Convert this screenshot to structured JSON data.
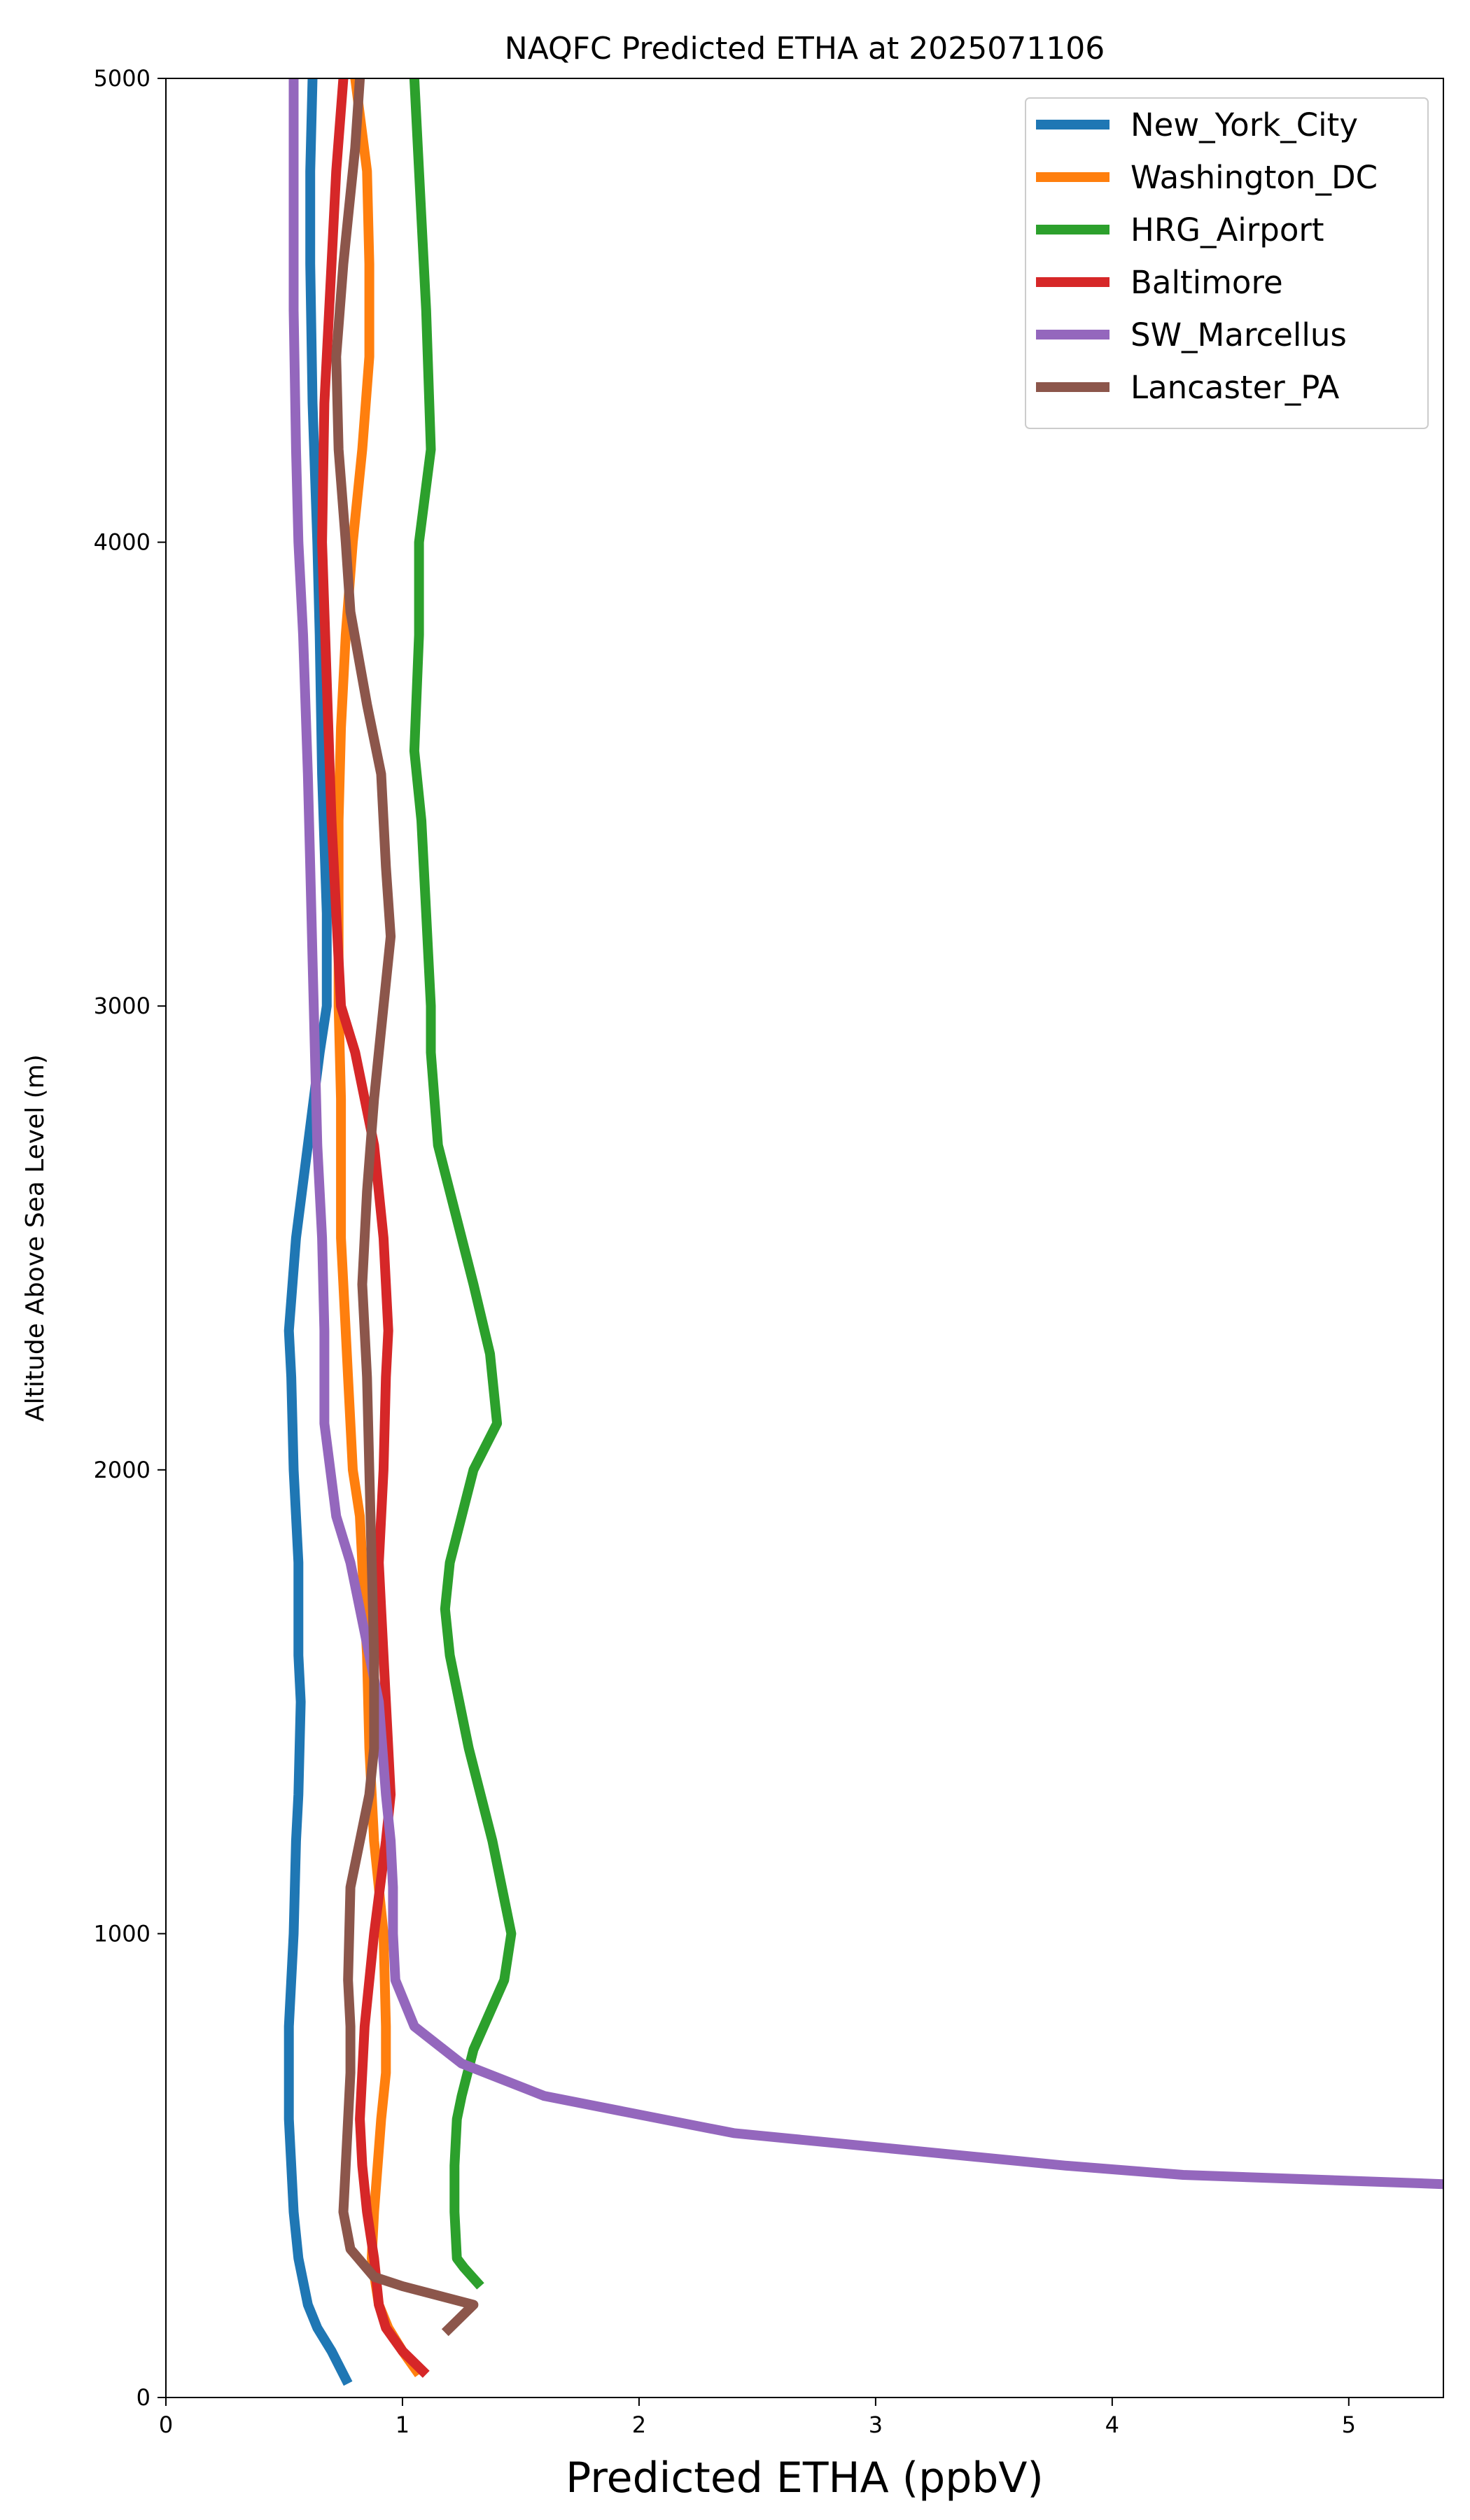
{
  "chart_data": {
    "type": "line",
    "title": "NAQFC Predicted ETHA at 2025071106",
    "xlabel": "Predicted ETHA (ppbV)",
    "ylabel": "Altitude Above Sea Level (m)",
    "xlim": [
      0,
      5.4
    ],
    "ylim": [
      0,
      5000
    ],
    "xticks": [
      0,
      1,
      2,
      3,
      4,
      5
    ],
    "yticks": [
      0,
      1000,
      2000,
      3000,
      4000,
      5000
    ],
    "grid": false,
    "legend_position": "top-right",
    "series": [
      {
        "name": "New_York_City",
        "color": "#1f77b4",
        "points": [
          [
            0.77,
            30
          ],
          [
            0.7,
            100
          ],
          [
            0.64,
            150
          ],
          [
            0.6,
            200
          ],
          [
            0.56,
            300
          ],
          [
            0.54,
            400
          ],
          [
            0.53,
            500
          ],
          [
            0.52,
            600
          ],
          [
            0.52,
            700
          ],
          [
            0.52,
            800
          ],
          [
            0.53,
            900
          ],
          [
            0.54,
            1000
          ],
          [
            0.55,
            1200
          ],
          [
            0.56,
            1300
          ],
          [
            0.57,
            1500
          ],
          [
            0.56,
            1600
          ],
          [
            0.56,
            1800
          ],
          [
            0.55,
            1900
          ],
          [
            0.54,
            2000
          ],
          [
            0.53,
            2200
          ],
          [
            0.52,
            2300
          ],
          [
            0.55,
            2500
          ],
          [
            0.6,
            2700
          ],
          [
            0.65,
            2900
          ],
          [
            0.68,
            3000
          ],
          [
            0.68,
            3200
          ],
          [
            0.66,
            3500
          ],
          [
            0.65,
            3800
          ],
          [
            0.64,
            4000
          ],
          [
            0.62,
            4300
          ],
          [
            0.61,
            4600
          ],
          [
            0.61,
            4800
          ],
          [
            0.62,
            5000
          ]
        ]
      },
      {
        "name": "Washington_DC",
        "color": "#ff7f0e",
        "points": [
          [
            1.07,
            50
          ],
          [
            1.0,
            100
          ],
          [
            0.94,
            150
          ],
          [
            0.9,
            200
          ],
          [
            0.87,
            300
          ],
          [
            0.88,
            400
          ],
          [
            0.91,
            600
          ],
          [
            0.93,
            700
          ],
          [
            0.93,
            800
          ],
          [
            0.92,
            1000
          ],
          [
            0.88,
            1200
          ],
          [
            0.86,
            1400
          ],
          [
            0.85,
            1600
          ],
          [
            0.84,
            1700
          ],
          [
            0.82,
            1900
          ],
          [
            0.79,
            2000
          ],
          [
            0.77,
            2200
          ],
          [
            0.75,
            2400
          ],
          [
            0.74,
            2500
          ],
          [
            0.74,
            2600
          ],
          [
            0.74,
            2800
          ],
          [
            0.73,
            3000
          ],
          [
            0.73,
            3200
          ],
          [
            0.73,
            3400
          ],
          [
            0.74,
            3600
          ],
          [
            0.76,
            3800
          ],
          [
            0.79,
            4000
          ],
          [
            0.83,
            4200
          ],
          [
            0.86,
            4400
          ],
          [
            0.86,
            4600
          ],
          [
            0.85,
            4800
          ],
          [
            0.8,
            5000
          ]
        ]
      },
      {
        "name": "HRG_Airport",
        "color": "#2ca02c",
        "points": [
          [
            1.33,
            240
          ],
          [
            1.26,
            280
          ],
          [
            1.23,
            300
          ],
          [
            1.22,
            400
          ],
          [
            1.22,
            500
          ],
          [
            1.23,
            600
          ],
          [
            1.25,
            650
          ],
          [
            1.3,
            750
          ],
          [
            1.43,
            900
          ],
          [
            1.46,
            1000
          ],
          [
            1.44,
            1050
          ],
          [
            1.38,
            1200
          ],
          [
            1.28,
            1400
          ],
          [
            1.2,
            1600
          ],
          [
            1.18,
            1700
          ],
          [
            1.2,
            1800
          ],
          [
            1.3,
            2000
          ],
          [
            1.4,
            2100
          ],
          [
            1.37,
            2250
          ],
          [
            1.3,
            2400
          ],
          [
            1.2,
            2600
          ],
          [
            1.15,
            2700
          ],
          [
            1.12,
            2900
          ],
          [
            1.12,
            3000
          ],
          [
            1.1,
            3200
          ],
          [
            1.08,
            3400
          ],
          [
            1.05,
            3550
          ],
          [
            1.07,
            3800
          ],
          [
            1.07,
            4000
          ],
          [
            1.12,
            4200
          ],
          [
            1.1,
            4500
          ],
          [
            1.08,
            4700
          ],
          [
            1.05,
            5000
          ]
        ]
      },
      {
        "name": "Baltimore",
        "color": "#d62728",
        "points": [
          [
            1.1,
            50
          ],
          [
            1.0,
            100
          ],
          [
            0.93,
            150
          ],
          [
            0.9,
            200
          ],
          [
            0.88,
            300
          ],
          [
            0.85,
            400
          ],
          [
            0.83,
            500
          ],
          [
            0.82,
            600
          ],
          [
            0.83,
            700
          ],
          [
            0.84,
            800
          ],
          [
            0.88,
            1000
          ],
          [
            0.93,
            1200
          ],
          [
            0.95,
            1300
          ],
          [
            0.93,
            1500
          ],
          [
            0.91,
            1700
          ],
          [
            0.9,
            1800
          ],
          [
            0.92,
            2000
          ],
          [
            0.93,
            2200
          ],
          [
            0.94,
            2300
          ],
          [
            0.92,
            2500
          ],
          [
            0.88,
            2700
          ],
          [
            0.8,
            2900
          ],
          [
            0.74,
            3000
          ],
          [
            0.72,
            3200
          ],
          [
            0.7,
            3400
          ],
          [
            0.68,
            3700
          ],
          [
            0.66,
            4000
          ],
          [
            0.67,
            4300
          ],
          [
            0.7,
            4600
          ],
          [
            0.72,
            4800
          ],
          [
            0.75,
            5000
          ]
        ]
      },
      {
        "name": "SW_Marcellus",
        "color": "#9467bd",
        "points": [
          [
            5.4,
            460
          ],
          [
            4.3,
            480
          ],
          [
            3.8,
            500
          ],
          [
            3.2,
            530
          ],
          [
            2.4,
            570
          ],
          [
            1.6,
            650
          ],
          [
            1.25,
            720
          ],
          [
            1.05,
            800
          ],
          [
            0.97,
            900
          ],
          [
            0.96,
            1000
          ],
          [
            0.96,
            1100
          ],
          [
            0.95,
            1200
          ],
          [
            0.93,
            1300
          ],
          [
            0.9,
            1500
          ],
          [
            0.86,
            1600
          ],
          [
            0.82,
            1700
          ],
          [
            0.78,
            1800
          ],
          [
            0.72,
            1900
          ],
          [
            0.67,
            2100
          ],
          [
            0.67,
            2300
          ],
          [
            0.66,
            2500
          ],
          [
            0.64,
            2700
          ],
          [
            0.63,
            2900
          ],
          [
            0.62,
            3100
          ],
          [
            0.61,
            3300
          ],
          [
            0.6,
            3500
          ],
          [
            0.58,
            3800
          ],
          [
            0.56,
            4000
          ],
          [
            0.55,
            4200
          ],
          [
            0.54,
            4500
          ],
          [
            0.54,
            4700
          ],
          [
            0.54,
            5000
          ]
        ]
      },
      {
        "name": "Lancaster_PA",
        "color": "#8c564b",
        "points": [
          [
            1.18,
            140
          ],
          [
            1.3,
            200
          ],
          [
            1.0,
            240
          ],
          [
            0.88,
            260
          ],
          [
            0.78,
            320
          ],
          [
            0.75,
            400
          ],
          [
            0.76,
            500
          ],
          [
            0.78,
            700
          ],
          [
            0.78,
            800
          ],
          [
            0.77,
            900
          ],
          [
            0.78,
            1100
          ],
          [
            0.82,
            1200
          ],
          [
            0.86,
            1300
          ],
          [
            0.88,
            1400
          ],
          [
            0.88,
            1600
          ],
          [
            0.87,
            1800
          ],
          [
            0.86,
            2000
          ],
          [
            0.85,
            2200
          ],
          [
            0.83,
            2400
          ],
          [
            0.85,
            2600
          ],
          [
            0.88,
            2800
          ],
          [
            0.92,
            3000
          ],
          [
            0.95,
            3150
          ],
          [
            0.93,
            3300
          ],
          [
            0.91,
            3500
          ],
          [
            0.85,
            3650
          ],
          [
            0.78,
            3850
          ],
          [
            0.76,
            4000
          ],
          [
            0.73,
            4200
          ],
          [
            0.72,
            4400
          ],
          [
            0.75,
            4600
          ],
          [
            0.77,
            4700
          ],
          [
            0.8,
            4850
          ],
          [
            0.82,
            5000
          ]
        ]
      }
    ]
  }
}
